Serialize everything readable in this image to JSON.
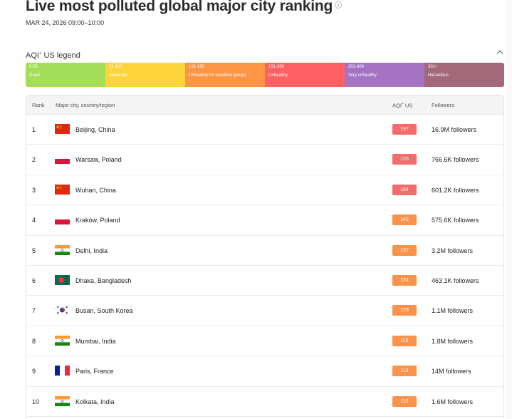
{
  "header": {
    "title": "Live most polluted global major city ranking",
    "date": "MAR 24, 2026 09:00–10:00"
  },
  "legend": {
    "title": "AQI",
    "title_sup": "+",
    "title_suffix": " US legend",
    "segments": [
      {
        "range": "0-50",
        "label": "Good",
        "color": "#a4de58"
      },
      {
        "range": "51-100",
        "label": "Moderate",
        "color": "#fdd43a"
      },
      {
        "range": "101-150",
        "label": "Unhealthy for sensitive groups",
        "color": "#fe9545"
      },
      {
        "range": "151-200",
        "label": "Unhealthy",
        "color": "#fd6163"
      },
      {
        "range": "201-300",
        "label": "Very unhealthy",
        "color": "#a474c3"
      },
      {
        "range": "301+",
        "label": "Hazardous",
        "color": "#a3697a"
      }
    ]
  },
  "table": {
    "headers": {
      "rank": "Rank",
      "city": "Major city, country/region",
      "aqi": "AQI",
      "aqi_sup": "+",
      "aqi_suffix": " US",
      "followers": "Followers"
    },
    "rows": [
      {
        "rank": "1",
        "flag": "china-flag",
        "city": "Beijing, China",
        "aqi": "197",
        "aqi_color": "#f36b6c",
        "followers": "16.9M followers"
      },
      {
        "rank": "2",
        "flag": "poland-flag",
        "city": "Warsaw, Poland",
        "aqi": "155",
        "aqi_color": "#f36b6c",
        "followers": "766.6K followers"
      },
      {
        "rank": "3",
        "flag": "china-flag",
        "city": "Wuhan, China",
        "aqi": "154",
        "aqi_color": "#f36b6c",
        "followers": "601.2K followers"
      },
      {
        "rank": "4",
        "flag": "poland-flag",
        "city": "Kraków, Poland",
        "aqi": "142",
        "aqi_color": "#f9924a",
        "followers": "575.6K followers"
      },
      {
        "rank": "5",
        "flag": "india-flag",
        "city": "Delhi, India",
        "aqi": "137",
        "aqi_color": "#f9924a",
        "followers": "3.2M followers"
      },
      {
        "rank": "6",
        "flag": "bangladesh-flag",
        "city": "Dhaka, Bangladesh",
        "aqi": "134",
        "aqi_color": "#f9924a",
        "followers": "463.1K followers"
      },
      {
        "rank": "7",
        "flag": "south-korea-flag",
        "city": "Busan, South Korea",
        "aqi": "129",
        "aqi_color": "#f9924a",
        "followers": "1.1M followers"
      },
      {
        "rank": "8",
        "flag": "india-flag",
        "city": "Mumbai, India",
        "aqi": "116",
        "aqi_color": "#f9924a",
        "followers": "1.8M followers"
      },
      {
        "rank": "9",
        "flag": "france-flag",
        "city": "Paris, France",
        "aqi": "113",
        "aqi_color": "#f9924a",
        "followers": "14M followers"
      },
      {
        "rank": "10",
        "flag": "india-flag",
        "city": "Kolkata, India",
        "aqi": "113",
        "aqi_color": "#f9924a",
        "followers": "1.6M followers"
      }
    ]
  }
}
